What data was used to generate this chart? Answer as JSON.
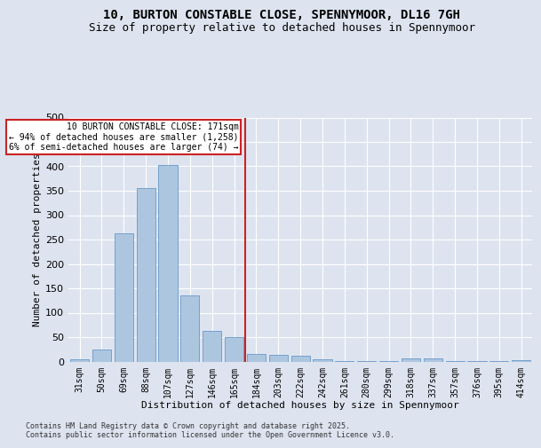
{
  "title": "10, BURTON CONSTABLE CLOSE, SPENNYMOOR, DL16 7GH",
  "subtitle": "Size of property relative to detached houses in Spennymoor",
  "xlabel": "Distribution of detached houses by size in Spennymoor",
  "ylabel": "Number of detached properties",
  "categories": [
    "31sqm",
    "50sqm",
    "69sqm",
    "88sqm",
    "107sqm",
    "127sqm",
    "146sqm",
    "165sqm",
    "184sqm",
    "203sqm",
    "222sqm",
    "242sqm",
    "261sqm",
    "280sqm",
    "299sqm",
    "318sqm",
    "337sqm",
    "357sqm",
    "376sqm",
    "395sqm",
    "414sqm"
  ],
  "values": [
    5,
    25,
    262,
    356,
    403,
    135,
    62,
    50,
    16,
    14,
    12,
    5,
    1,
    1,
    1,
    7,
    7,
    1,
    1,
    1,
    2
  ],
  "bar_color": "#adc6e0",
  "bar_edge_color": "#6898c8",
  "vline_index": 7.5,
  "vline_color": "#cc2222",
  "ylim": [
    0,
    500
  ],
  "yticks": [
    0,
    50,
    100,
    150,
    200,
    250,
    300,
    350,
    400,
    450,
    500
  ],
  "annotation_text": "10 BURTON CONSTABLE CLOSE: 171sqm\n← 94% of detached houses are smaller (1,258)\n6% of semi-detached houses are larger (74) →",
  "annotation_box_facecolor": "#ffffff",
  "annotation_box_edgecolor": "#cc2222",
  "footer": "Contains HM Land Registry data © Crown copyright and database right 2025.\nContains public sector information licensed under the Open Government Licence v3.0.",
  "bg_color": "#dde4f0",
  "plot_bg_color": "#dde4f0",
  "grid_color": "#ffffff",
  "title_fontsize": 10,
  "subtitle_fontsize": 9,
  "tick_fontsize": 7,
  "ylabel_fontsize": 8,
  "xlabel_fontsize": 8,
  "footer_fontsize": 6
}
